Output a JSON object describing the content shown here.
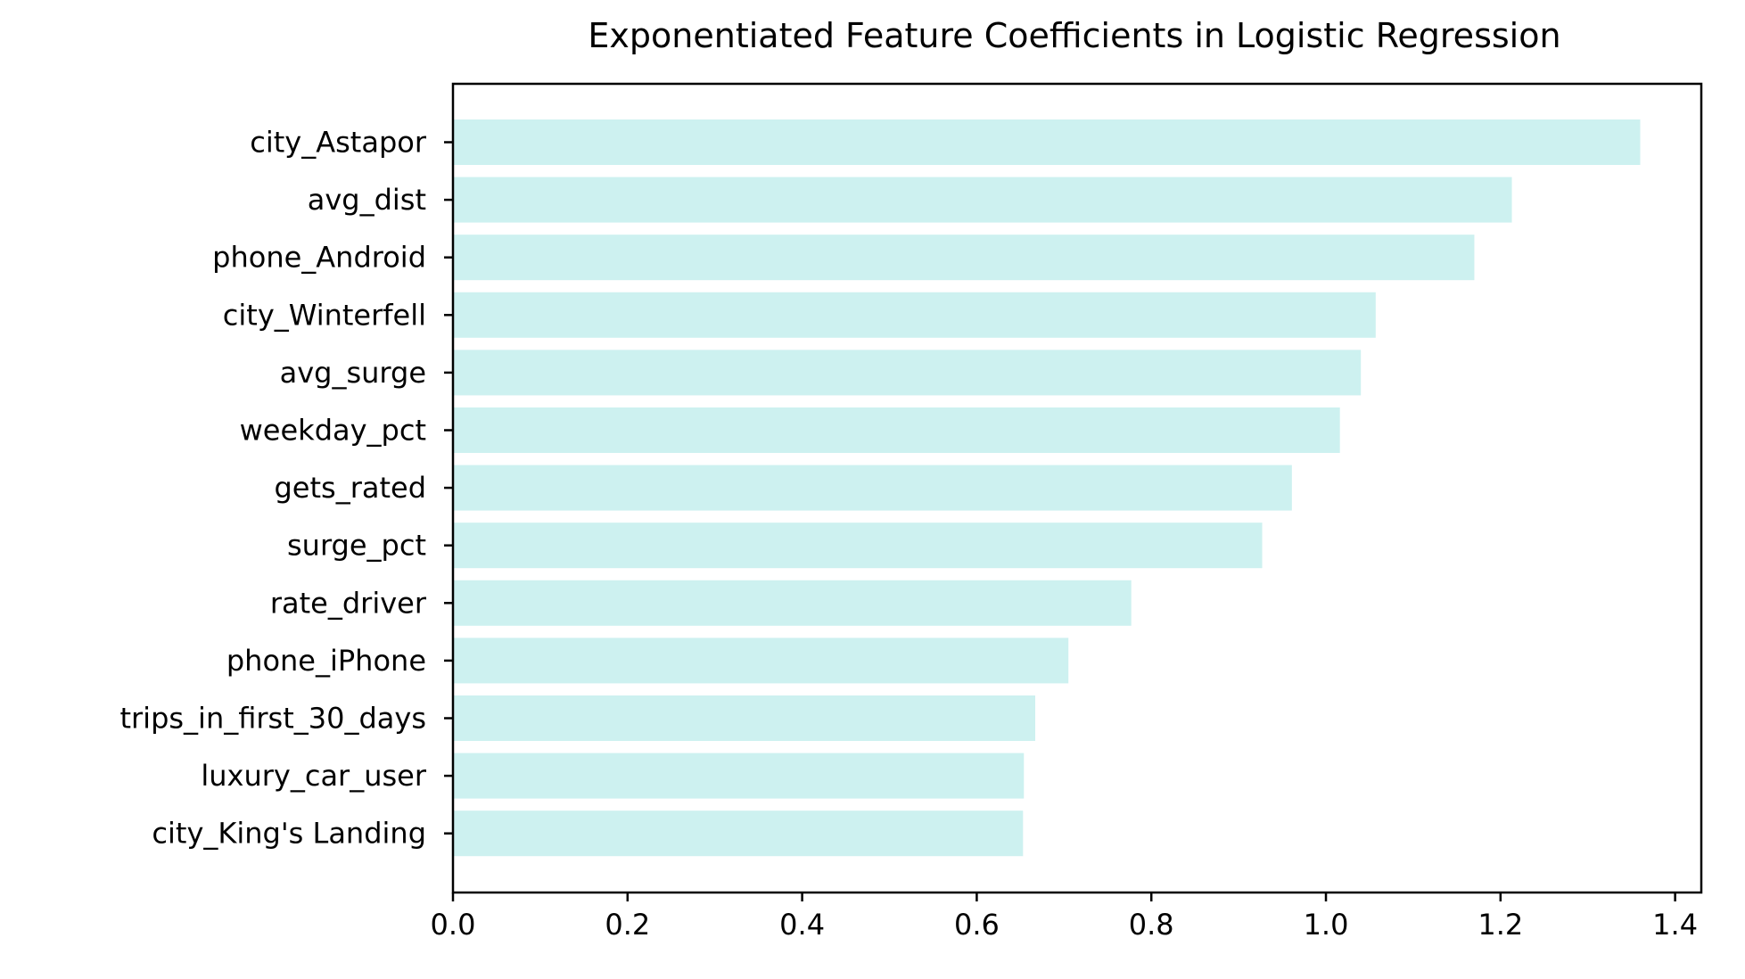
{
  "chart_data": {
    "type": "bar",
    "orientation": "horizontal",
    "title": "Exponentiated Feature Coefficients in Logistic Regression",
    "xlabel": "",
    "ylabel": "",
    "xlim": [
      0,
      1.43
    ],
    "xticks": [
      0.0,
      0.2,
      0.4,
      0.6,
      0.8,
      1.0,
      1.2,
      1.4
    ],
    "xtick_labels": [
      "0.0",
      "0.2",
      "0.4",
      "0.6",
      "0.8",
      "1.0",
      "1.2",
      "1.4"
    ],
    "grid": false,
    "bar_color": "#cdf1f0",
    "categories": [
      "city_Astapor",
      "avg_dist",
      "phone_Android",
      "city_Winterfell",
      "avg_surge",
      "weekday_pct",
      "gets_rated",
      "surge_pct",
      "rate_driver",
      "phone_iPhone",
      "trips_in_first_30_days",
      "luxury_car_user",
      "city_King's Landing"
    ],
    "values": [
      1.36,
      1.213,
      1.17,
      1.057,
      1.04,
      1.016,
      0.961,
      0.927,
      0.777,
      0.705,
      0.667,
      0.654,
      0.653
    ]
  }
}
